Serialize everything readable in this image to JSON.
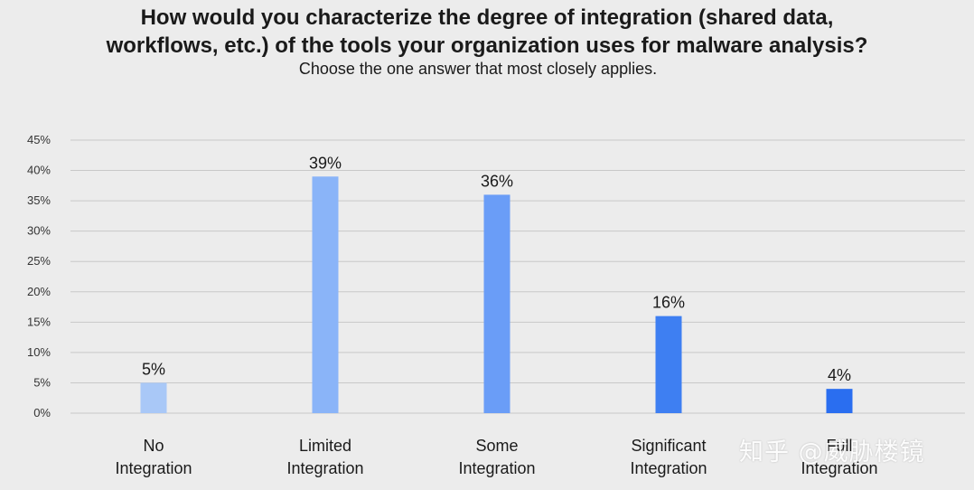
{
  "chart_data": {
    "type": "bar",
    "title_lines": [
      "How would you characterize the degree of integration (shared data,",
      "workflows, etc.) of the tools your organization uses for malware analysis?"
    ],
    "subtitle": "Choose the one answer that most closely applies.",
    "categories": [
      [
        "No",
        "Integration"
      ],
      [
        "Limited",
        "Integration"
      ],
      [
        "Some",
        "Integration"
      ],
      [
        "Significant",
        "Integration"
      ],
      [
        "Full",
        "Integration"
      ]
    ],
    "values": [
      5,
      39,
      36,
      16,
      4
    ],
    "data_labels": [
      "5%",
      "39%",
      "36%",
      "16%",
      "4%"
    ],
    "yticks": [
      "45%",
      "40%",
      "35%",
      "30%",
      "25%",
      "20%",
      "15%",
      "10%",
      "5%",
      "0%"
    ],
    "ytick_values": [
      45,
      40,
      35,
      30,
      25,
      20,
      15,
      10,
      5,
      0
    ],
    "ylim": [
      0,
      45
    ],
    "xlabel": "",
    "ylabel": "",
    "grid": true,
    "legend": "none",
    "colors": [
      "#a9c8f7",
      "#8ab4f8",
      "#6a9df7",
      "#3e7ff2",
      "#2a6ef0"
    ],
    "grid_color": "#c8c8c8"
  },
  "watermark": "知乎 @威胁楼镜"
}
